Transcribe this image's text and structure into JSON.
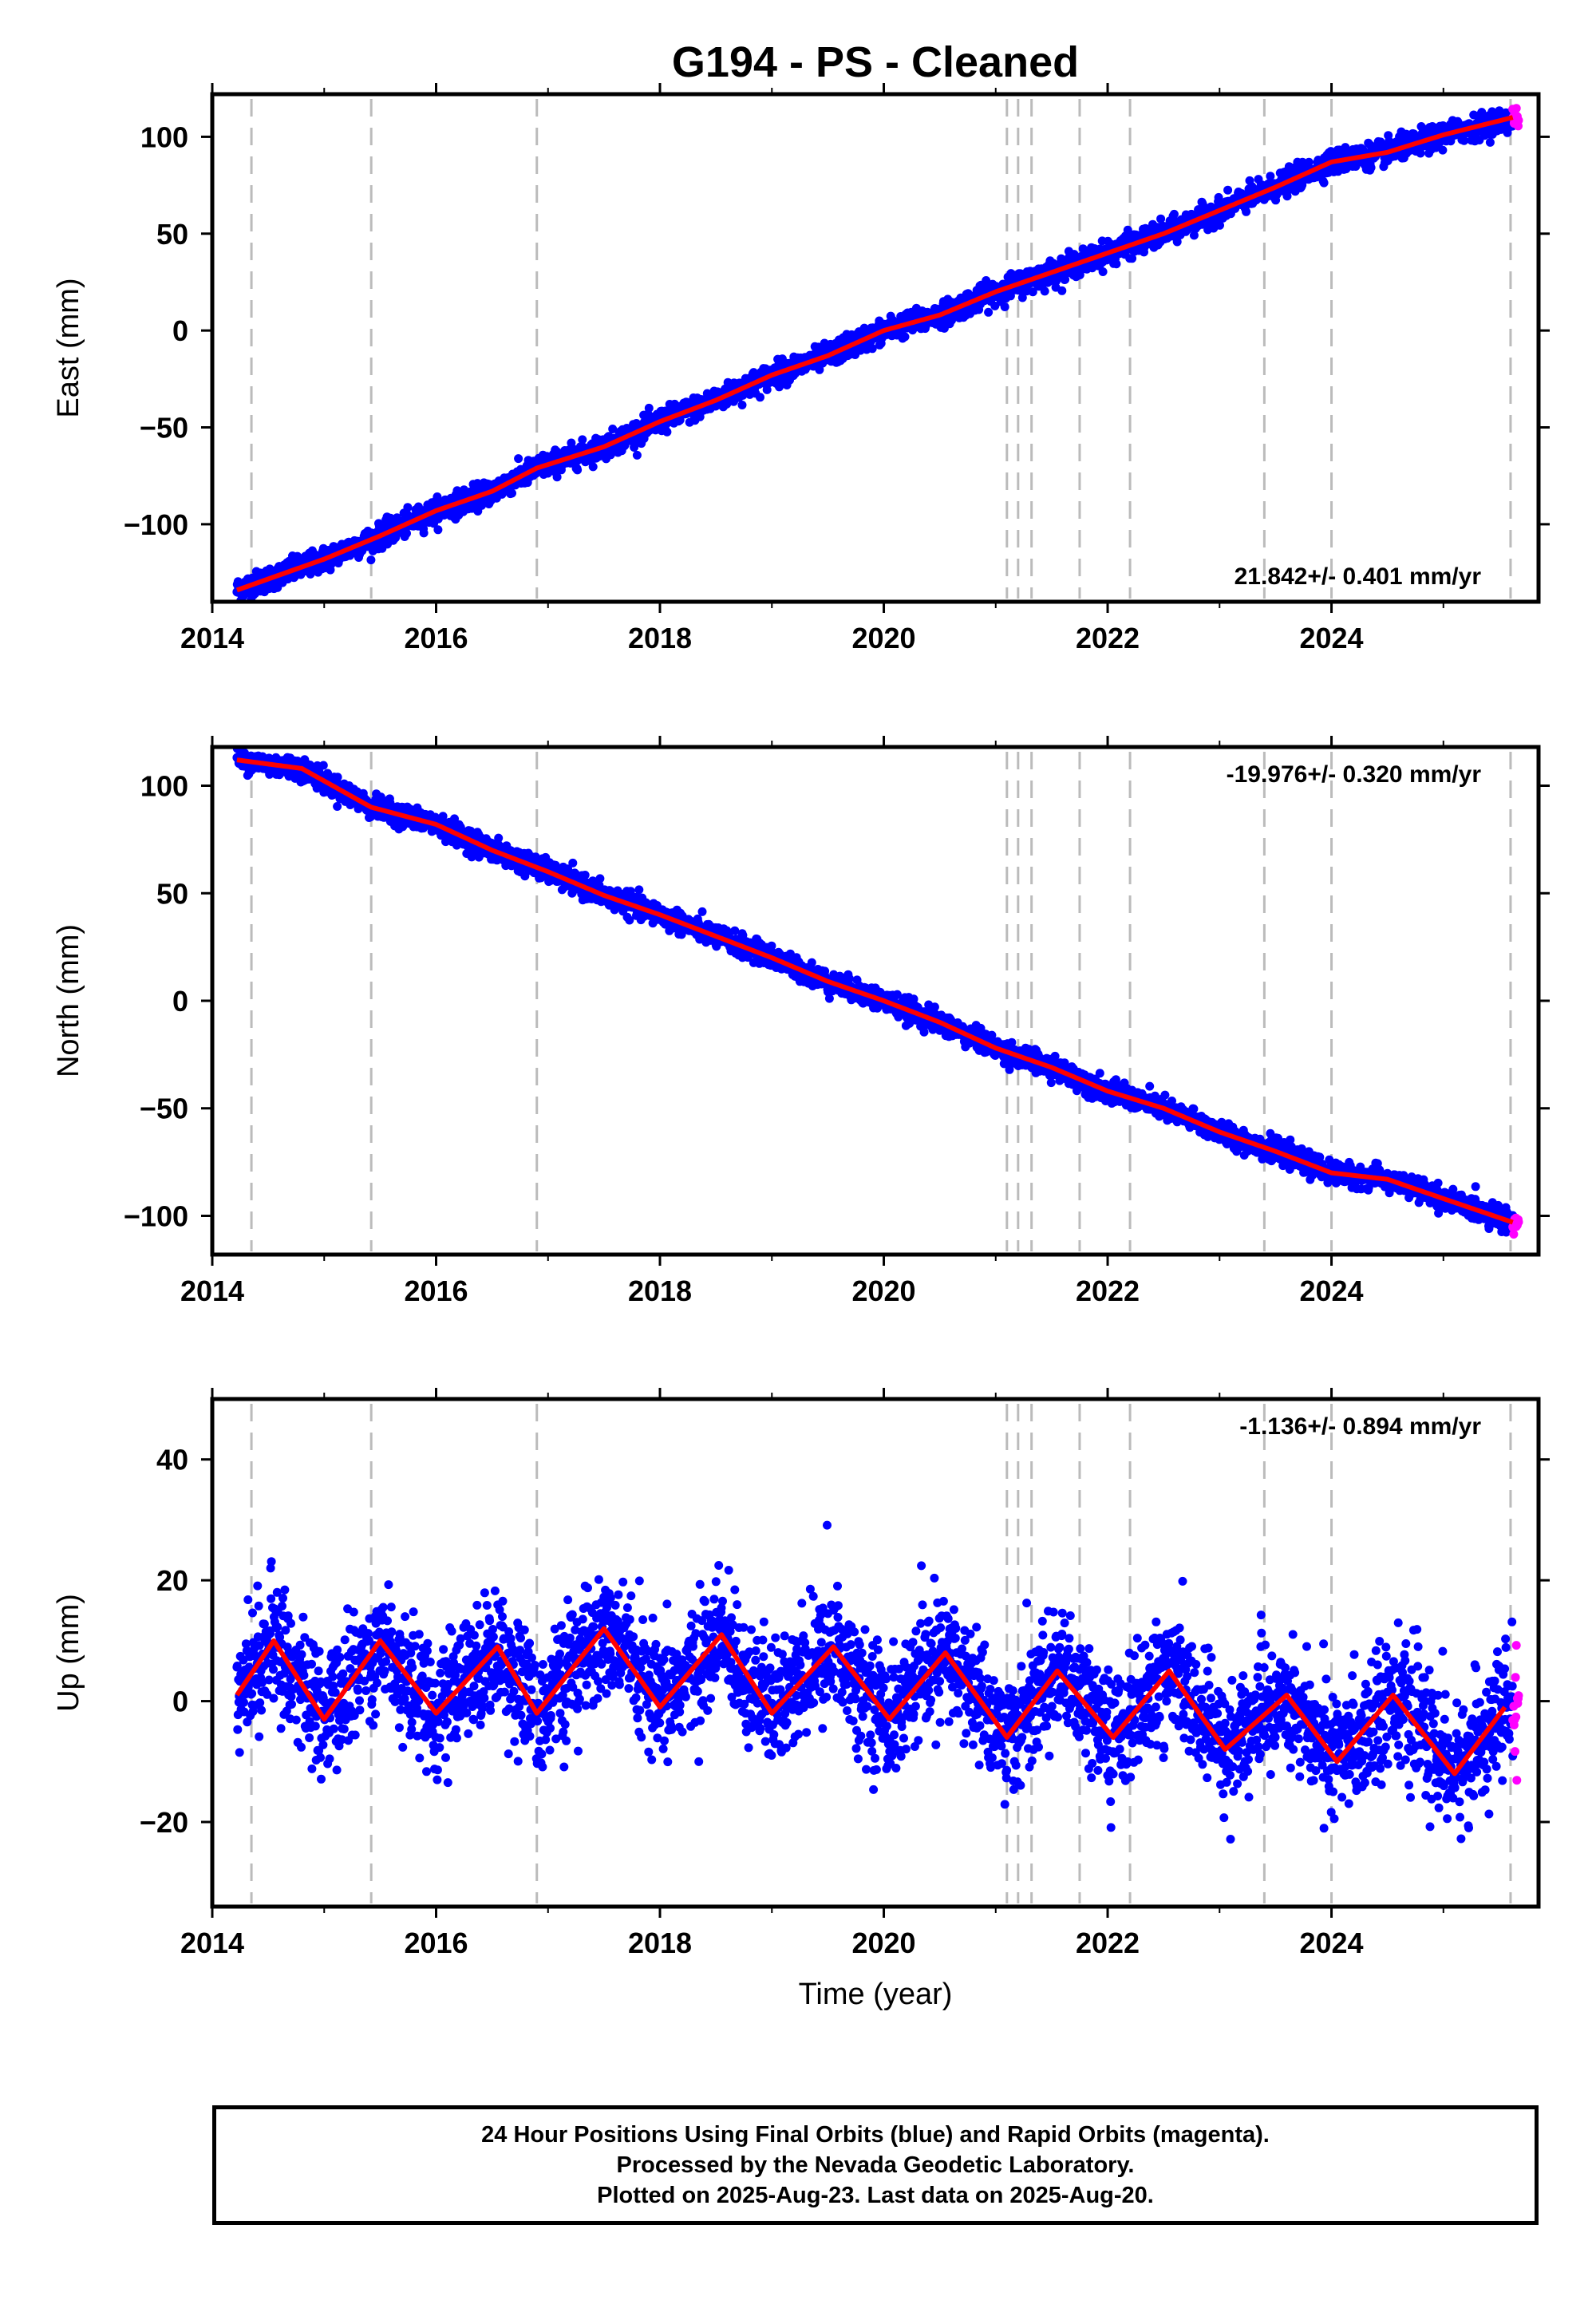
{
  "title": "G194  - PS - Cleaned",
  "colors": {
    "final_orbits": "#0000ff",
    "rapid_orbits": "#ff00ff",
    "model_fit": "#ff0000",
    "event_lines": "#bbbbbb"
  },
  "chart_data": [
    {
      "type": "scatter",
      "component": "east",
      "ylabel": "East (mm)",
      "xlabel": "",
      "xlim": [
        2014.0,
        2025.85
      ],
      "ylim": [
        -140,
        122
      ],
      "xticks": [
        2014,
        2016,
        2018,
        2020,
        2022,
        2024
      ],
      "xtick_labels": [
        "2014",
        "2016",
        "2018",
        "2020",
        "2022",
        "2024"
      ],
      "yticks": [
        -100,
        -50,
        0,
        50,
        100
      ],
      "ytick_labels": [
        "−100",
        "−50",
        "0",
        "50",
        "100"
      ],
      "velocity_label": "21.842+/- 0.401 mm/yr",
      "velocity_label_position": "bottom-right",
      "start": {
        "t": 2014.22,
        "v": -135
      },
      "end": {
        "t": 2025.62,
        "v": 110
      },
      "seasonal_amplitude": 1.5,
      "noise": 3.0,
      "event_lines": [
        2014.35,
        2015.42,
        2016.9,
        2021.1,
        2021.2,
        2021.32,
        2021.75,
        2022.2,
        2023.4,
        2024.0,
        2025.6
      ],
      "fit_points": [
        [
          2014.22,
          -134
        ],
        [
          2015.0,
          -118
        ],
        [
          2015.5,
          -106
        ],
        [
          2016.0,
          -93
        ],
        [
          2016.5,
          -83
        ],
        [
          2016.9,
          -71
        ],
        [
          2017.5,
          -60
        ],
        [
          2018.0,
          -47
        ],
        [
          2018.5,
          -36
        ],
        [
          2019.0,
          -23
        ],
        [
          2019.5,
          -13
        ],
        [
          2020.0,
          0
        ],
        [
          2020.5,
          8
        ],
        [
          2021.0,
          20
        ],
        [
          2021.5,
          30
        ],
        [
          2022.0,
          40
        ],
        [
          2022.5,
          50
        ],
        [
          2023.0,
          62
        ],
        [
          2023.5,
          74
        ],
        [
          2024.0,
          87
        ],
        [
          2024.5,
          92
        ],
        [
          2025.0,
          101
        ],
        [
          2025.62,
          110
        ]
      ]
    },
    {
      "type": "scatter",
      "component": "north",
      "ylabel": "North (mm)",
      "xlabel": "",
      "xlim": [
        2014.0,
        2025.85
      ],
      "ylim": [
        -118,
        118
      ],
      "xticks": [
        2014,
        2016,
        2018,
        2020,
        2022,
        2024
      ],
      "xtick_labels": [
        "2014",
        "2016",
        "2018",
        "2020",
        "2022",
        "2024"
      ],
      "yticks": [
        -100,
        -50,
        0,
        50,
        100
      ],
      "ytick_labels": [
        "−100",
        "−50",
        "0",
        "50",
        "100"
      ],
      "velocity_label": "-19.976+/- 0.320 mm/yr",
      "velocity_label_position": "top-right",
      "start": {
        "t": 2014.22,
        "v": 112
      },
      "end": {
        "t": 2025.62,
        "v": -103
      },
      "seasonal_amplitude": 1.5,
      "noise": 2.5,
      "event_lines": [
        2014.35,
        2015.42,
        2016.9,
        2021.1,
        2021.2,
        2021.32,
        2021.75,
        2022.2,
        2023.4,
        2024.0,
        2025.6
      ],
      "fit_points": [
        [
          2014.22,
          112
        ],
        [
          2014.8,
          108
        ],
        [
          2015.42,
          90
        ],
        [
          2016.0,
          82
        ],
        [
          2016.5,
          70
        ],
        [
          2017.0,
          60
        ],
        [
          2017.5,
          49
        ],
        [
          2018.0,
          40
        ],
        [
          2018.5,
          30
        ],
        [
          2019.0,
          20
        ],
        [
          2019.5,
          9
        ],
        [
          2020.0,
          0
        ],
        [
          2020.5,
          -10
        ],
        [
          2021.0,
          -22
        ],
        [
          2021.5,
          -31
        ],
        [
          2022.0,
          -42
        ],
        [
          2022.5,
          -50
        ],
        [
          2023.0,
          -61
        ],
        [
          2023.5,
          -70
        ],
        [
          2024.0,
          -80
        ],
        [
          2024.5,
          -83
        ],
        [
          2025.0,
          -92
        ],
        [
          2025.62,
          -103
        ]
      ]
    },
    {
      "type": "scatter",
      "component": "up",
      "ylabel": "Up (mm)",
      "xlabel": "Time (year)",
      "xlim": [
        2014.0,
        2025.85
      ],
      "ylim": [
        -34,
        50
      ],
      "xticks": [
        2014,
        2016,
        2018,
        2020,
        2022,
        2024
      ],
      "xtick_labels": [
        "2014",
        "2016",
        "2018",
        "2020",
        "2022",
        "2024"
      ],
      "yticks": [
        -20,
        0,
        20,
        40
      ],
      "ytick_labels": [
        "−20",
        "0",
        "20",
        "40"
      ],
      "velocity_label": "-1.136+/- 0.894 mm/yr",
      "velocity_label_position": "top-right",
      "start": {
        "t": 2014.22,
        "v": 2
      },
      "end": {
        "t": 2025.62,
        "v": -5
      },
      "seasonal_amplitude": 6.5,
      "noise": 5.0,
      "event_lines": [
        2014.35,
        2015.42,
        2016.9,
        2021.1,
        2021.2,
        2021.32,
        2021.75,
        2022.2,
        2023.4,
        2024.0,
        2025.6
      ],
      "fit_points": [
        [
          2014.22,
          1
        ],
        [
          2014.55,
          10
        ],
        [
          2015.0,
          -3
        ],
        [
          2015.5,
          10
        ],
        [
          2016.0,
          -2
        ],
        [
          2016.55,
          9
        ],
        [
          2016.9,
          -2
        ],
        [
          2017.5,
          12
        ],
        [
          2018.0,
          -1
        ],
        [
          2018.55,
          11
        ],
        [
          2019.0,
          -2
        ],
        [
          2019.55,
          9
        ],
        [
          2020.05,
          -3
        ],
        [
          2020.55,
          8
        ],
        [
          2021.1,
          -6
        ],
        [
          2021.55,
          5
        ],
        [
          2022.05,
          -6
        ],
        [
          2022.55,
          5
        ],
        [
          2023.05,
          -8
        ],
        [
          2023.6,
          1
        ],
        [
          2024.05,
          -10
        ],
        [
          2024.55,
          1
        ],
        [
          2025.1,
          -12
        ],
        [
          2025.55,
          -1
        ]
      ]
    }
  ],
  "footer": {
    "line1": "24 Hour Positions Using Final Orbits (blue) and Rapid Orbits (magenta).",
    "line2": "Processed by the Nevada Geodetic Laboratory.",
    "line3": "Plotted on 2025-Aug-23. Last data on 2025-Aug-20."
  }
}
